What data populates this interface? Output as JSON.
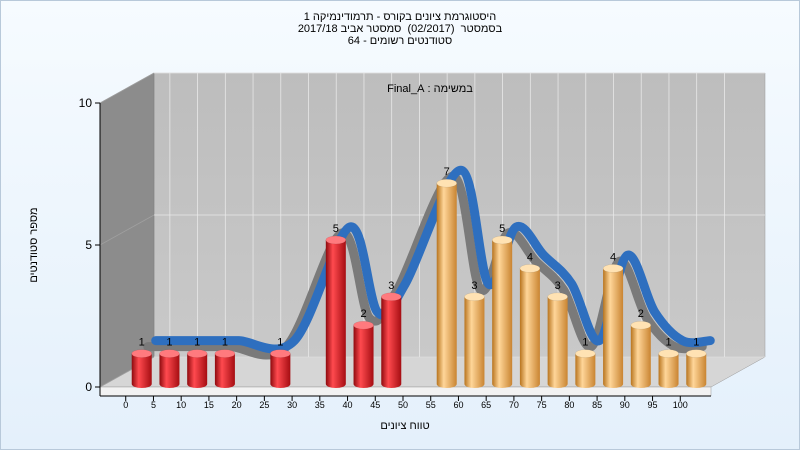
{
  "chart_data": {
    "type": "bar",
    "title_lines": [
      "היסטוגרמת ציונים בקורס - תרמודינמיקה 1",
      "בסמסטר  (02/2017)  סמסטר אביב 2017/18",
      "סטודנטים רשומים - 64"
    ],
    "inner_label": "במשימה : Final_A",
    "xlabel": "טווח ציונים",
    "ylabel": "מספר סטודנטים",
    "ylim": [
      0,
      10
    ],
    "yticks": [
      "0",
      "5",
      "10"
    ],
    "categories": [
      "0",
      "5",
      "10",
      "15",
      "20",
      "25",
      "30",
      "35",
      "40",
      "45",
      "50",
      "55",
      "60",
      "65",
      "70",
      "75",
      "80",
      "85",
      "90",
      "95",
      "100"
    ],
    "values": [
      1,
      1,
      1,
      1,
      null,
      1,
      null,
      5,
      2,
      3,
      null,
      7,
      3,
      5,
      4,
      3,
      1,
      4,
      2,
      1,
      1
    ],
    "bar_colors": [
      "red",
      "red",
      "red",
      "red",
      null,
      "red",
      null,
      "red",
      "red",
      "red",
      null,
      "orange",
      "orange",
      "orange",
      "orange",
      "orange",
      "orange",
      "orange",
      "orange",
      "orange",
      "orange"
    ],
    "colors": {
      "red": "#e0151b",
      "orange": "#f0a84a",
      "curve": "#2e6fbf",
      "curve_shadow": "#7a7a7a",
      "plot_back": "#c0c0c0",
      "plot_side": "#8c8c8c",
      "plot_floor": "#d6d6d6"
    },
    "grid": true
  }
}
